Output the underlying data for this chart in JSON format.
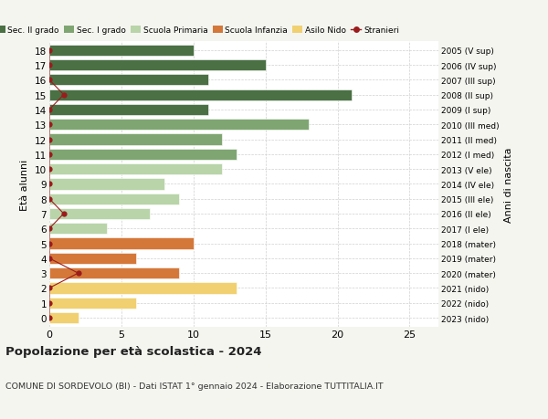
{
  "ages": [
    0,
    1,
    2,
    3,
    4,
    5,
    6,
    7,
    8,
    9,
    10,
    11,
    12,
    13,
    14,
    15,
    16,
    17,
    18
  ],
  "years": [
    "2023 (nido)",
    "2022 (nido)",
    "2021 (nido)",
    "2020 (mater)",
    "2019 (mater)",
    "2018 (mater)",
    "2017 (I ele)",
    "2016 (II ele)",
    "2015 (III ele)",
    "2014 (IV ele)",
    "2013 (V ele)",
    "2012 (I med)",
    "2011 (II med)",
    "2010 (III med)",
    "2009 (I sup)",
    "2008 (II sup)",
    "2007 (III sup)",
    "2006 (IV sup)",
    "2005 (V sup)"
  ],
  "values": [
    2,
    6,
    13,
    9,
    6,
    10,
    4,
    7,
    9,
    8,
    12,
    13,
    12,
    18,
    11,
    21,
    11,
    15,
    10
  ],
  "color_map": [
    "nido",
    "nido",
    "nido",
    "infanzia",
    "infanzia",
    "infanzia",
    "primaria",
    "primaria",
    "primaria",
    "primaria",
    "primaria",
    "sec1",
    "sec1",
    "sec1",
    "sec2",
    "sec2",
    "sec2",
    "sec2",
    "sec2"
  ],
  "colors": {
    "sec2": "#4a7044",
    "sec1": "#7fa672",
    "primaria": "#b8d4a8",
    "infanzia": "#d4783a",
    "nido": "#f0d070",
    "stranieri": "#9b1c1c"
  },
  "stranieri_values": [
    0,
    0,
    0,
    2,
    0,
    0,
    0,
    1,
    0,
    0,
    0,
    0,
    0,
    0,
    0,
    1,
    0,
    0,
    0
  ],
  "title": "Popolazione per età scolastica - 2024",
  "subtitle": "COMUNE DI SORDEVOLO (BI) - Dati ISTAT 1° gennaio 2024 - Elaborazione TUTTITALIA.IT",
  "ylabel_left": "Età alunni",
  "ylabel_right": "Anni di nascita",
  "xlim": [
    0,
    27
  ],
  "xticks": [
    0,
    5,
    10,
    15,
    20,
    25
  ],
  "legend_labels": [
    "Sec. II grado",
    "Sec. I grado",
    "Scuola Primaria",
    "Scuola Infanzia",
    "Asilo Nido",
    "Stranieri"
  ],
  "legend_colors": [
    "#4a7044",
    "#7fa672",
    "#b8d4a8",
    "#d4783a",
    "#f0d070",
    "#9b1c1c"
  ],
  "bg_color": "#f5f5f0",
  "plot_bg": "#ffffff"
}
